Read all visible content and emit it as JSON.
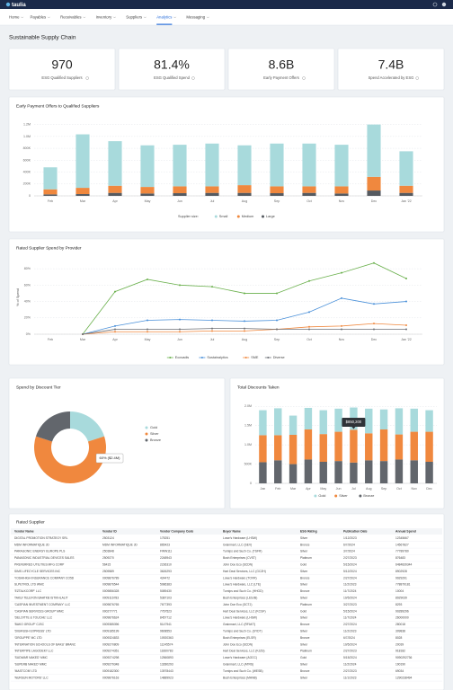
{
  "header": {
    "brand": "taulia"
  },
  "nav": [
    "Home",
    "Payables",
    "Receivables",
    "Inventory",
    "Suppliers",
    "Analytics",
    "Messaging"
  ],
  "page_title": "Sustainable Supply Chain",
  "kpis": [
    {
      "value": "970",
      "label": "ESG Qualified Suppliers"
    },
    {
      "value": "81.4%",
      "label": "ESG Qualified Spend"
    },
    {
      "value": "8.6B",
      "label": "Early Payment Offers"
    },
    {
      "value": "7.4B",
      "label": "Spend Accelerated by ESG"
    }
  ],
  "chart_data": [
    {
      "type": "bar",
      "stacked": true,
      "title": "Early Payment Offers to Qualified Suppliers",
      "categories": [
        "Feb",
        "Mar",
        "Apr",
        "May",
        "Jun",
        "Jul",
        "Aug",
        "Sep",
        "Oct",
        "Nov",
        "Dec",
        "Jan '22"
      ],
      "series": [
        {
          "name": "Large",
          "color": "#555a60",
          "values": [
            25000,
            30000,
            50000,
            40000,
            45000,
            50000,
            50000,
            45000,
            50000,
            40000,
            90000,
            50000
          ]
        },
        {
          "name": "Medium",
          "color": "#f0883e",
          "values": [
            85000,
            105000,
            120000,
            110000,
            115000,
            110000,
            130000,
            115000,
            110000,
            120000,
            230000,
            120000
          ]
        },
        {
          "name": "Small",
          "color": "#a8dadc",
          "values": [
            370000,
            900000,
            750000,
            700000,
            700000,
            720000,
            670000,
            720000,
            720000,
            700000,
            880000,
            580000
          ]
        }
      ],
      "legend_title": "Supplier size:",
      "legend_order": [
        "Small",
        "Medium",
        "Large"
      ],
      "ylim": [
        0,
        1300000
      ],
      "yticks": [
        0,
        {
          "value": 200000,
          "label": "200K"
        },
        {
          "value": 400000,
          "label": "400K"
        },
        {
          "value": 600000,
          "label": "600K"
        },
        {
          "value": 800000,
          "label": "800K"
        },
        {
          "value": 1000000,
          "label": "1.0M"
        },
        {
          "value": 1200000,
          "label": "1.2M"
        }
      ],
      "grid": true,
      "legend": "bottom"
    },
    {
      "type": "line",
      "title": "Rated Supplier Spend by Provider",
      "y_label": "% of Spend",
      "categories": [
        "Feb",
        "Mar",
        "Apr",
        "May",
        "Jun",
        "Jul",
        "Aug",
        "Sep",
        "Oct",
        "Nov",
        "Dec",
        "Jan '22"
      ],
      "series": [
        {
          "name": "Ecovadis",
          "color": "#6ab04c",
          "values": [
            null,
            0,
            52,
            67,
            60,
            58,
            50,
            50,
            65,
            75,
            87,
            68
          ]
        },
        {
          "name": "Sustainalytics",
          "color": "#4a90d9",
          "values": [
            null,
            0,
            10,
            17,
            18,
            17,
            16,
            17,
            27,
            44,
            37,
            40
          ]
        },
        {
          "name": "SME",
          "color": "#f0883e",
          "values": [
            null,
            0,
            3,
            3,
            3,
            4,
            4,
            6,
            9,
            10,
            13,
            11
          ]
        },
        {
          "name": "Diverse",
          "color": "#6b6f75",
          "values": [
            null,
            0,
            6,
            6,
            6,
            7,
            7,
            6,
            6,
            6,
            6,
            6
          ]
        }
      ],
      "ylim": [
        0,
        90
      ],
      "yticks": [
        {
          "value": 0,
          "label": "0%"
        },
        {
          "value": 20,
          "label": "20%"
        },
        {
          "value": 40,
          "label": "40%"
        },
        {
          "value": 60,
          "label": "60%"
        },
        {
          "value": 80,
          "label": "80%"
        }
      ],
      "grid": true,
      "legend": "bottom"
    },
    {
      "type": "pie",
      "donut": true,
      "title": "Spend by Discount Tier",
      "categories": [
        "Gold",
        "Silver",
        "Bronze"
      ],
      "values": [
        20,
        60,
        20
      ],
      "colors": [
        "#a8dadc",
        "#f0883e",
        "#62666c"
      ],
      "annotation": "60% ($2.4M)",
      "legend": "right"
    },
    {
      "type": "bar",
      "stacked": true,
      "title": "Total Discounts Taken",
      "categories": [
        "Jan",
        "Feb",
        "Mar",
        "Apr",
        "May",
        "Jun",
        "Jul",
        "Aug",
        "Sep",
        "Oct",
        "Nov",
        "Dec"
      ],
      "series": [
        {
          "name": "Bronze",
          "color": "#62666c",
          "values": [
            550000,
            600000,
            500000,
            620000,
            560000,
            580000,
            540000,
            600000,
            580000,
            620000,
            600000,
            560000
          ]
        },
        {
          "name": "Silver",
          "color": "#f0883e",
          "values": [
            700000,
            650000,
            760000,
            780000,
            720000,
            760000,
            850200,
            700000,
            820000,
            650000,
            740000,
            780000
          ]
        },
        {
          "name": "Gold",
          "color": "#a8dadc",
          "values": [
            650000,
            700000,
            500000,
            560000,
            620000,
            600000,
            580000,
            640000,
            520000,
            680000,
            600000,
            560000
          ]
        }
      ],
      "legend_order": [
        "Gold",
        "Silver",
        "Bronze"
      ],
      "annotation": "$850,200",
      "ylim": [
        0,
        2100000
      ],
      "yticks": [
        0,
        {
          "value": 500000,
          "label": "500K"
        },
        {
          "value": 1000000,
          "label": "1.0M"
        },
        {
          "value": 1500000,
          "label": "1.5M"
        },
        {
          "value": 2000000,
          "label": "2.0M"
        }
      ],
      "grid": true,
      "legend": "bottom"
    }
  ],
  "table": {
    "title": "Rated Supplier",
    "columns": [
      "Vendor Name",
      "Vendor ID",
      "Vendor Company Code",
      "Buyer Name",
      "ESG Rating",
      "Publication Date",
      "Annual Spend"
    ],
    "rows": [
      [
        "DIGITAL PROMOTION STRATEGY SRL",
        "2503124",
        "175251",
        "Lowe's Hardware (LHSW)",
        "Silver",
        "1/12/2023",
        "12345667"
      ],
      [
        "MDM INFORMATIQUE JD",
        "MDM INFORMATIQUE JD",
        "865423",
        "Grainmart, LLC (SEV)",
        "Bronze",
        "6/7/2024",
        "14567827"
      ],
      [
        "PARAGONIC ENERGY EUROPE PLS",
        "2503848",
        "FWW111",
        "Turnips and Such Co. (TSFR)",
        "Silver",
        "3/7/2024",
        "77789780"
      ],
      [
        "PANASONIC INDUSTRIAL DEVICES SALES",
        "2509270",
        "2248943",
        "Bush Enterprises (CVST)",
        "Platinum",
        "2/27/2023",
        "876483"
      ],
      [
        "PREFERRED UTILITIES MFG CORP",
        "56415",
        "2236310",
        "John Doe Eco (SCDN)",
        "Gold",
        "5/15/2024",
        "6484839344"
      ],
      [
        "SIMS LIFECYCLE SERVICES INC",
        "2509589",
        "3626293",
        "Hart Deal Services, LLC (GCZH)",
        "Silver",
        "5/12/2024",
        "8902928"
      ],
      [
        "YOSHIHIGH INSURANCE COMPANY CO5D",
        "0009876789",
        "424472",
        "Lowe's Hardware (TOVR)",
        "Bronze",
        "2/27/2024",
        "9929291"
      ],
      [
        "SLPETROL LTD WMC",
        "0009876544",
        "5086383",
        "Lowe's Hardware, LLC (LTE)",
        "Silver",
        "11/2/2023",
        "778879181"
      ],
      [
        "'EZTALKCORP' LLC",
        "0009856328",
        "5089430",
        "Turnips and Such Co. (HHGD)",
        "Bronze",
        "11/7/2024",
        "10004"
      ],
      [
        "TAKUI TELEFON BAATKB ISTIKHLALIT",
        "0009116783",
        "5387103",
        "Bush Enterprises (LESJB)",
        "Silver",
        "10/5/2024",
        "8929039"
      ],
      [
        "'CASPIAN INVESTMENT COMPANY' LLC",
        "0009876765",
        "7677393",
        "John Doe Eco (GCTJ)",
        "Platinum",
        "3/27/2023",
        "8293"
      ],
      [
        "'CASPIAN SERVICES GROUP' MMC",
        "000277771",
        "7767523",
        "Hart Deal Services, LLC (KCGF)",
        "Gold",
        "5/15/2024",
        "90289296"
      ],
      [
        "'DELOITTE & TOUCHE' LLC",
        "0009876624",
        "8457712",
        "Lowe's Hardware (LHSW)",
        "Silver",
        "11/7/2024",
        "26000000"
      ],
      [
        "'BAKO GROUP' CJSC",
        "0009385396",
        "5147941",
        "Grainmart, LLC (RFAKT)",
        "Bronze",
        "2/27/2024",
        "280018"
      ],
      [
        "'DIGIRUSH EXPRESS' LTD",
        "0009185199",
        "9608553",
        "Turnips and Such Co. (SYDT)",
        "Silver",
        "11/2/2023",
        "309838"
      ],
      [
        "'GROUPPE' MC LTD",
        "0009324833",
        "10920363",
        "Bush Enterprises (ELSR)",
        "Bronze",
        "6/7/2024",
        "8028"
      ],
      [
        "'INTERNATION SCHOOLS OF BAKU' BRANC",
        "0009270809",
        "11245574",
        "John Doe Eco (SCDN)",
        "Silver",
        "10/5/2024",
        "20039"
      ],
      [
        "'INTERPIPE LAGODEKI' LLC",
        "0009274351",
        "11660783",
        "Hart Deal Services, LLC (KJZS)",
        "Platinum",
        "2/27/2023",
        "918182"
      ],
      [
        "'SUDWAR NAKED' MMC",
        "0009274298",
        "12560893",
        "Lowe's Hardware (AGCC)",
        "Gold",
        "5/15/2024",
        "9090292736"
      ],
      [
        "'SUPERB NAKED' MMC",
        "0009279348",
        "13280293",
        "Grainmart, LLC (ATRS)",
        "Silver",
        "11/2/2024",
        "190190"
      ],
      [
        "'MASTCOM' LTD",
        "0009182300",
        "13978443",
        "Turnips and Such Co. (WESB)",
        "Bronze",
        "2/27/2023",
        "69034"
      ],
      [
        "'NURSUN MOTORS' LLC",
        "0009876163",
        "14889923",
        "Bush Enterprises (MANB)",
        "Silver",
        "11/1/2023",
        "1290238494"
      ]
    ]
  }
}
